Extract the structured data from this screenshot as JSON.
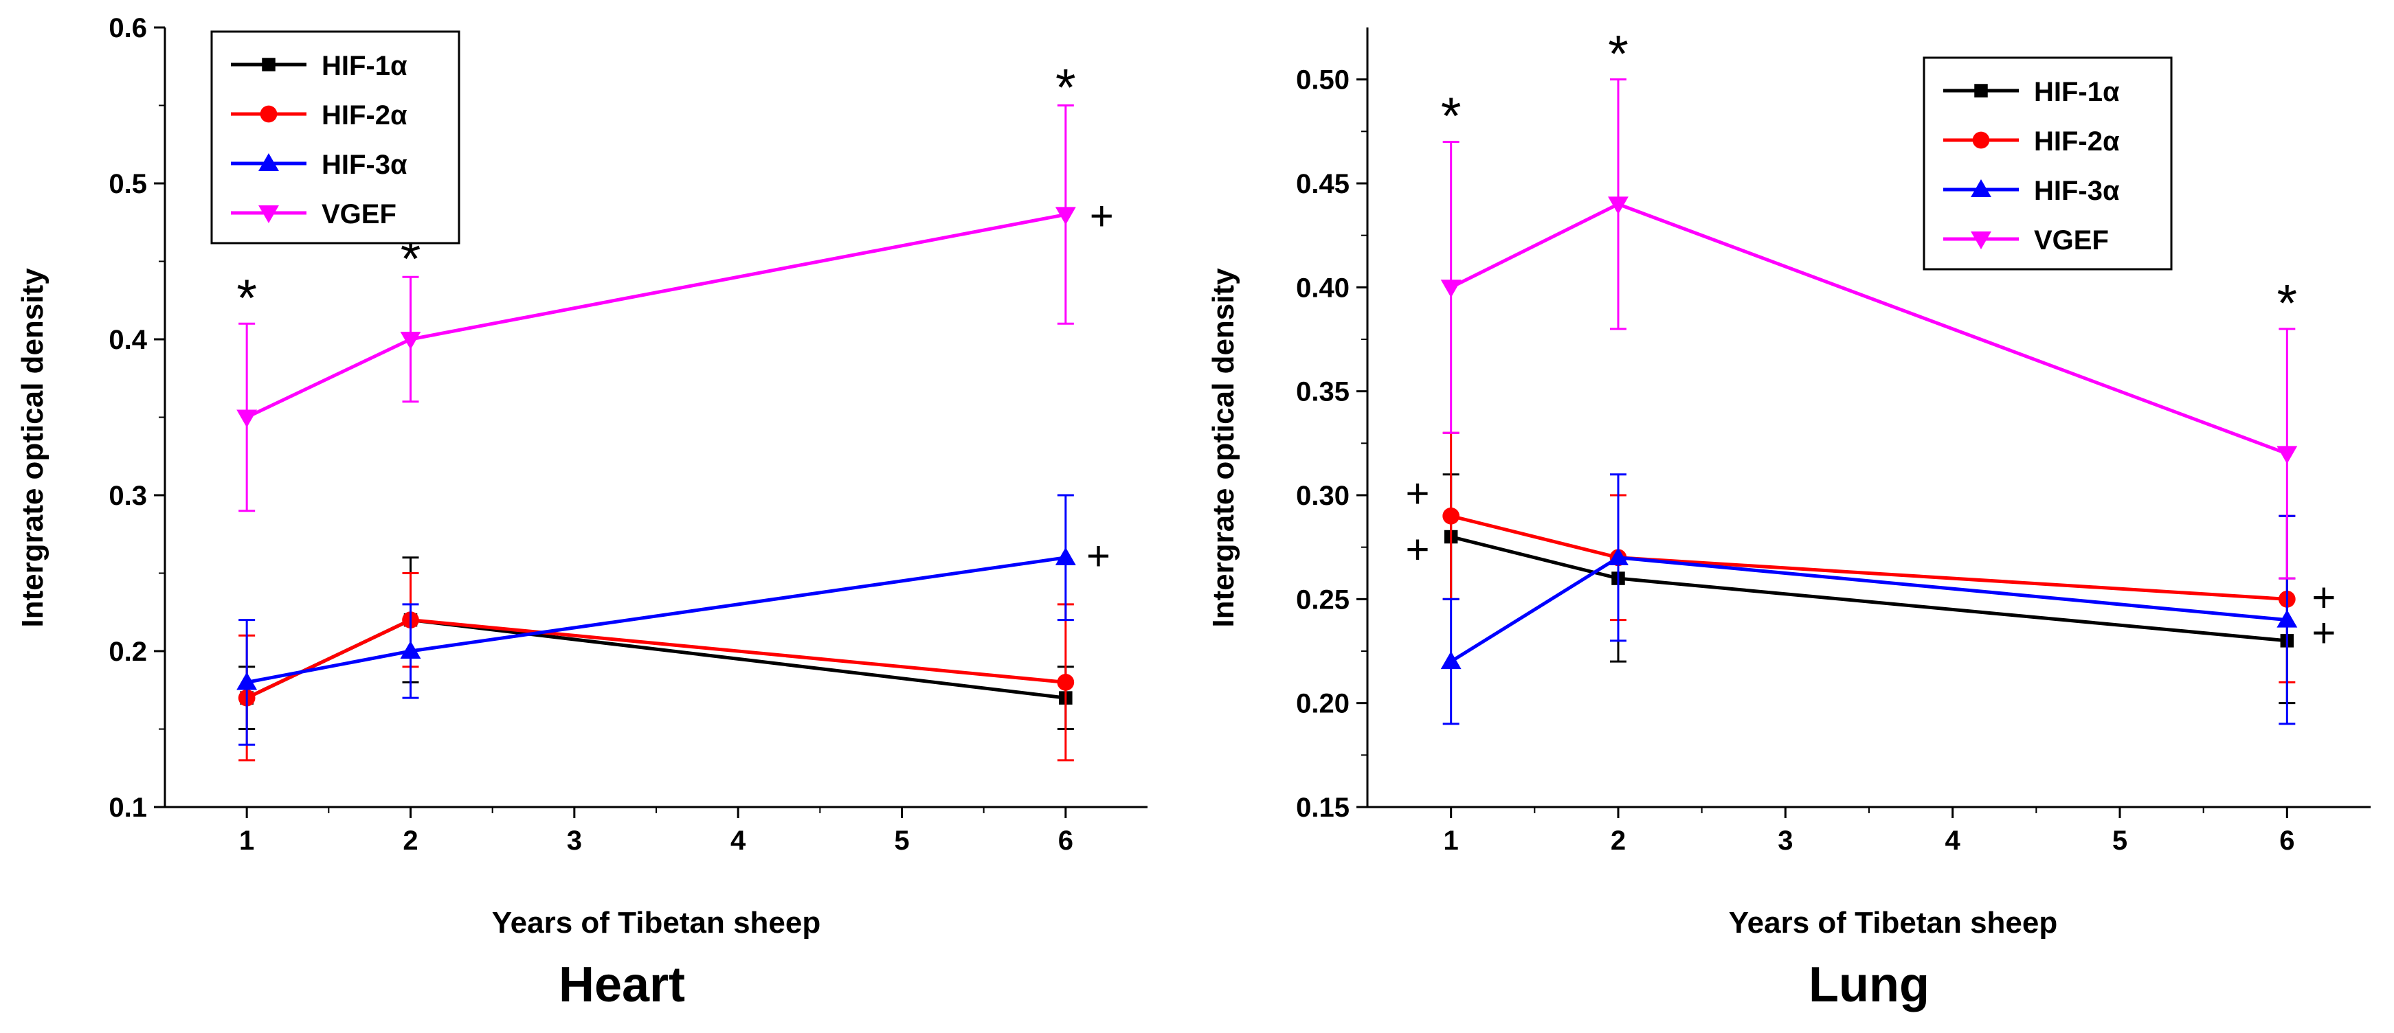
{
  "chart_data": [
    {
      "type": "line",
      "panel_label": "Heart",
      "xlabel": "Years of  Tibetan sheep",
      "ylabel": "Intergrate optical density",
      "xlim": [
        0.5,
        6.5
      ],
      "ylim": [
        0.1,
        0.6
      ],
      "xticks": [
        1,
        2,
        3,
        4,
        5,
        6
      ],
      "yticks": [
        0.1,
        0.2,
        0.3,
        0.4,
        0.5,
        0.6
      ],
      "ytick_labels": [
        "0.1",
        "0.2",
        "0.3",
        "0.4",
        "0.5",
        "0.6"
      ],
      "legend_position": "top-left",
      "x": [
        1,
        2,
        6
      ],
      "series": [
        {
          "name": "HIF-1α",
          "color": "#000000",
          "marker": "square",
          "values": [
            0.17,
            0.22,
            0.17
          ],
          "errors": [
            0.02,
            0.04,
            0.02
          ]
        },
        {
          "name": "HIF-2α",
          "color": "#ff0000",
          "marker": "circle",
          "values": [
            0.17,
            0.22,
            0.18
          ],
          "errors": [
            0.04,
            0.03,
            0.05
          ]
        },
        {
          "name": "HIF-3α",
          "color": "#0000ff",
          "marker": "triangle-up",
          "values": [
            0.18,
            0.2,
            0.26
          ],
          "errors": [
            0.04,
            0.03,
            0.04
          ]
        },
        {
          "name": "VGEF",
          "color": "#ff00ff",
          "marker": "triangle-down",
          "values": [
            0.35,
            0.4,
            0.48
          ],
          "errors": [
            0.06,
            0.04,
            0.07
          ]
        }
      ],
      "annotations": [
        {
          "text": "*",
          "x": 1,
          "y": 0.43
        },
        {
          "text": "*",
          "x": 2,
          "y": 0.455
        },
        {
          "text": "*",
          "x": 6,
          "y": 0.565
        },
        {
          "text": "+",
          "x": 6.22,
          "y": 0.478
        },
        {
          "text": "+",
          "x": 6.2,
          "y": 0.26
        }
      ]
    },
    {
      "type": "line",
      "panel_label": "Lung",
      "xlabel": "Years of  Tibetan sheep",
      "ylabel": "Intergrate optical density",
      "xlim": [
        0.5,
        6.5
      ],
      "ylim": [
        0.15,
        0.525
      ],
      "xticks": [
        1,
        2,
        3,
        4,
        5,
        6
      ],
      "yticks": [
        0.15,
        0.2,
        0.25,
        0.3,
        0.35,
        0.4,
        0.45,
        0.5
      ],
      "ytick_labels": [
        "0.15",
        "0.20",
        "0.25",
        "0.30",
        "0.35",
        "0.40",
        "0.45",
        "0.50"
      ],
      "legend_position": "top-right",
      "x": [
        1,
        2,
        6
      ],
      "series": [
        {
          "name": "HIF-1α",
          "color": "#000000",
          "marker": "square",
          "values": [
            0.28,
            0.26,
            0.23
          ],
          "errors": [
            0.03,
            0.04,
            0.03
          ]
        },
        {
          "name": "HIF-2α",
          "color": "#ff0000",
          "marker": "circle",
          "values": [
            0.29,
            0.27,
            0.25
          ],
          "errors": [
            0.04,
            0.03,
            0.04
          ]
        },
        {
          "name": "HIF-3α",
          "color": "#0000ff",
          "marker": "triangle-up",
          "values": [
            0.22,
            0.27,
            0.24
          ],
          "errors": [
            0.03,
            0.04,
            0.05
          ]
        },
        {
          "name": "VGEF",
          "color": "#ff00ff",
          "marker": "triangle-down",
          "values": [
            0.4,
            0.44,
            0.32
          ],
          "errors": [
            0.07,
            0.06,
            0.06
          ]
        }
      ],
      "annotations": [
        {
          "text": "*",
          "x": 1,
          "y": 0.485
        },
        {
          "text": "*",
          "x": 2,
          "y": 0.515
        },
        {
          "text": "*",
          "x": 6,
          "y": 0.395
        },
        {
          "text": "+",
          "x": 0.8,
          "y": 0.3
        },
        {
          "text": "+",
          "x": 0.8,
          "y": 0.273
        },
        {
          "text": "+",
          "x": 6.22,
          "y": 0.25
        },
        {
          "text": "+",
          "x": 6.22,
          "y": 0.233
        }
      ]
    }
  ]
}
